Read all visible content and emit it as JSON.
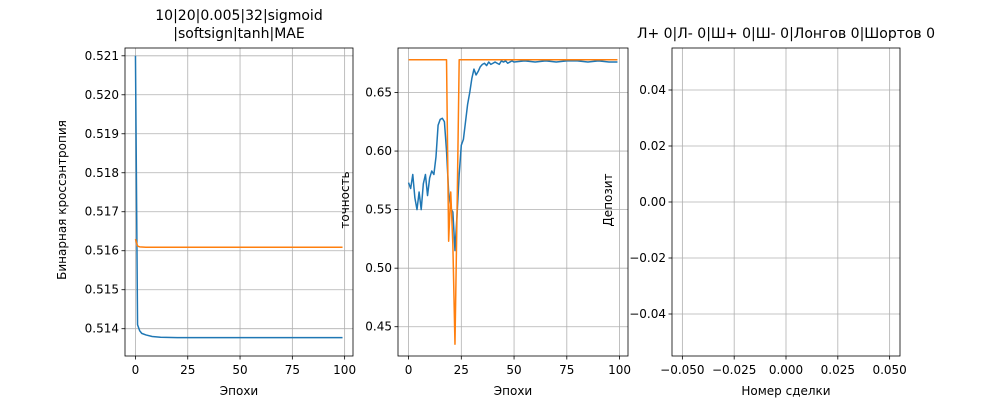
{
  "chart_data": [
    {
      "type": "line",
      "title": "10|20|0.005|32|sigmoid",
      "title_line2": "|softsign|tanh|MAE",
      "xlabel": "Эпохи",
      "ylabel": "Бинарная кроссэнтропия",
      "xlim": [
        -5,
        104
      ],
      "ylim": [
        0.5133,
        0.5212
      ],
      "xticks": [
        0,
        25,
        50,
        75,
        100
      ],
      "yticks": [
        0.514,
        0.515,
        0.516,
        0.517,
        0.518,
        0.519,
        0.52,
        0.521
      ],
      "ytick_labels": [
        "0.514",
        "0.515",
        "0.516",
        "0.517",
        "0.518",
        "0.519",
        "0.520",
        "0.521"
      ],
      "grid": true,
      "series": [
        {
          "color": "#1f77b4",
          "x": [
            0,
            1,
            2,
            3,
            5,
            8,
            12,
            20,
            40,
            60,
            80,
            99
          ],
          "y": [
            0.521,
            0.5141,
            0.51395,
            0.51388,
            0.51384,
            0.5138,
            0.51378,
            0.51377,
            0.51377,
            0.51377,
            0.51377,
            0.51377
          ]
        },
        {
          "color": "#ff7f0e",
          "x": [
            0,
            1,
            2,
            5,
            10,
            20,
            40,
            60,
            80,
            99
          ],
          "y": [
            0.5163,
            0.51612,
            0.5161,
            0.51609,
            0.51609,
            0.51609,
            0.51609,
            0.51609,
            0.51609,
            0.51609
          ]
        }
      ]
    },
    {
      "type": "line",
      "title": "",
      "xlabel": "Эпохи",
      "ylabel": "точность",
      "xlim": [
        -5,
        104
      ],
      "ylim": [
        0.425,
        0.688
      ],
      "xticks": [
        0,
        25,
        50,
        75,
        100
      ],
      "yticks": [
        0.45,
        0.5,
        0.55,
        0.6,
        0.65
      ],
      "ytick_labels": [
        "0.45",
        "0.50",
        "0.55",
        "0.60",
        "0.65"
      ],
      "grid": true,
      "series": [
        {
          "color": "#1f77b4",
          "x": [
            0,
            1,
            2,
            3,
            4,
            5,
            6,
            7,
            8,
            9,
            10,
            11,
            12,
            13,
            14,
            15,
            16,
            17,
            18,
            19,
            20,
            21,
            22,
            23,
            24,
            25,
            26,
            27,
            28,
            29,
            30,
            31,
            32,
            33,
            34,
            35,
            36,
            37,
            38,
            39,
            40,
            41,
            42,
            43,
            44,
            45,
            46,
            47,
            48,
            49,
            50,
            55,
            60,
            65,
            70,
            75,
            80,
            85,
            90,
            95,
            99
          ],
          "y": [
            0.573,
            0.568,
            0.58,
            0.56,
            0.55,
            0.565,
            0.55,
            0.572,
            0.58,
            0.562,
            0.577,
            0.583,
            0.58,
            0.595,
            0.622,
            0.627,
            0.628,
            0.625,
            0.6,
            0.565,
            0.551,
            0.548,
            0.515,
            0.546,
            0.58,
            0.605,
            0.61,
            0.625,
            0.64,
            0.65,
            0.662,
            0.67,
            0.665,
            0.668,
            0.672,
            0.674,
            0.675,
            0.673,
            0.676,
            0.674,
            0.675,
            0.676,
            0.675,
            0.674,
            0.677,
            0.676,
            0.677,
            0.675,
            0.676,
            0.677,
            0.676,
            0.677,
            0.676,
            0.677,
            0.676,
            0.677,
            0.677,
            0.676,
            0.677,
            0.676,
            0.676
          ]
        },
        {
          "color": "#ff7f0e",
          "x": [
            0,
            5,
            10,
            15,
            18,
            19,
            20,
            21,
            22,
            23,
            24,
            25,
            30,
            50,
            75,
            99
          ],
          "y": [
            0.678,
            0.678,
            0.678,
            0.678,
            0.678,
            0.523,
            0.565,
            0.52,
            0.435,
            0.55,
            0.678,
            0.678,
            0.678,
            0.678,
            0.678,
            0.678
          ]
        }
      ]
    },
    {
      "type": "line",
      "title": "Л+ 0|Л- 0|Ш+ 0|Ш- 0|Лонгов 0|Шортов 0",
      "xlabel": "Номер сделки",
      "ylabel": "Депозит",
      "xlim": [
        -0.055,
        0.055
      ],
      "ylim": [
        -0.055,
        0.055
      ],
      "xticks": [
        -0.05,
        -0.025,
        0.0,
        0.025,
        0.05
      ],
      "xtick_labels": [
        "−0.050",
        "−0.025",
        "0.000",
        "0.025",
        "0.050"
      ],
      "yticks": [
        -0.04,
        -0.02,
        0.0,
        0.02,
        0.04
      ],
      "ytick_labels": [
        "−0.04",
        "−0.02",
        "0.00",
        "0.02",
        "0.04"
      ],
      "grid": true,
      "series": []
    }
  ]
}
